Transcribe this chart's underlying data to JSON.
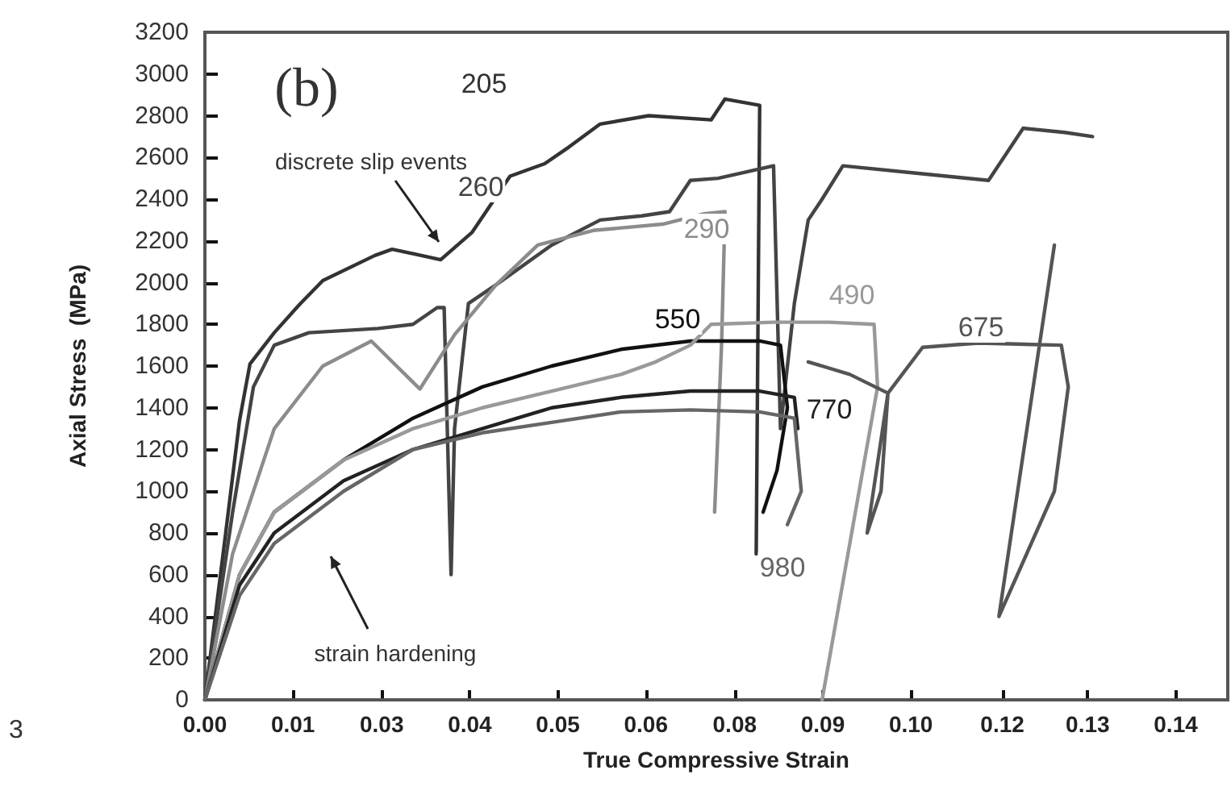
{
  "chart_data": {
    "type": "line",
    "xlabel": "True Compressive Strain",
    "ylabel": "Axial Stress  (MPa)",
    "xlim": [
      0,
      0.1475
    ],
    "ylim": [
      0,
      3200
    ],
    "xticks": [
      {
        "value": 0,
        "label": "0.00"
      },
      {
        "value": 0.0127,
        "label": "0.01"
      },
      {
        "value": 0.0255,
        "label": "0.03"
      },
      {
        "value": 0.0382,
        "label": "0.04"
      },
      {
        "value": 0.0509,
        "label": "0.05"
      },
      {
        "value": 0.0636,
        "label": "0.06"
      },
      {
        "value": 0.0764,
        "label": "0.08"
      },
      {
        "value": 0.0891,
        "label": "0.09"
      },
      {
        "value": 0.1018,
        "label": "0.10"
      },
      {
        "value": 0.115,
        "label": "0.12"
      },
      {
        "value": 0.1273,
        "label": "0.13"
      },
      {
        "value": 0.14,
        "label": "0.14"
      }
    ],
    "yticks": [
      0,
      200,
      400,
      600,
      800,
      1000,
      1200,
      1400,
      1600,
      1800,
      2000,
      2200,
      2400,
      2600,
      2800,
      3000,
      3200
    ],
    "grid": false,
    "marker": "none",
    "line_style": "solid",
    "series": [
      {
        "name": "205",
        "color": "#333333",
        "x": [
          0,
          0.003,
          0.005,
          0.0065,
          0.01,
          0.0135,
          0.017,
          0.0245,
          0.027,
          0.034,
          0.0385,
          0.044,
          0.049,
          0.0525,
          0.057,
          0.064,
          0.073,
          0.075,
          0.08,
          0.0795
        ],
        "values": [
          0,
          800,
          1340,
          1610,
          1760,
          1890,
          2010,
          2130,
          2160,
          2110,
          2240,
          2510,
          2570,
          2650,
          2760,
          2800,
          2780,
          2880,
          2850,
          700
        ]
      },
      {
        "name": "260",
        "color": "#444444",
        "x": [
          0,
          0.004,
          0.007,
          0.01,
          0.015,
          0.025,
          0.03,
          0.0335,
          0.0345,
          0.0355,
          0.036,
          0.038,
          0.042,
          0.05,
          0.057,
          0.063,
          0.067,
          0.07,
          0.074,
          0.082,
          0.083,
          0.085,
          0.087,
          0.089,
          0.092,
          0.104,
          0.113,
          0.118,
          0.124,
          0.128
        ],
        "values": [
          0,
          900,
          1500,
          1700,
          1760,
          1780,
          1800,
          1880,
          1880,
          600,
          1300,
          1900,
          1990,
          2180,
          2300,
          2320,
          2340,
          2490,
          2500,
          2560,
          1300,
          1900,
          2300,
          2400,
          2560,
          2520,
          2490,
          2740,
          2720,
          2700
        ]
      },
      {
        "name": "290",
        "color": "#8c8c8c",
        "x": [
          0,
          0.004,
          0.01,
          0.017,
          0.024,
          0.031,
          0.036,
          0.042,
          0.048,
          0.056,
          0.066,
          0.072,
          0.075,
          0.0745,
          0.0735
        ],
        "values": [
          0,
          700,
          1300,
          1600,
          1720,
          1490,
          1750,
          1990,
          2180,
          2250,
          2280,
          2330,
          2340,
          1700,
          900
        ]
      },
      {
        "name": "550",
        "color": "#111111",
        "x": [
          0,
          0.005,
          0.01,
          0.02,
          0.03,
          0.04,
          0.05,
          0.06,
          0.07,
          0.08,
          0.083,
          0.084,
          0.0825,
          0.0805
        ],
        "values": [
          0,
          600,
          900,
          1150,
          1350,
          1500,
          1600,
          1680,
          1720,
          1720,
          1700,
          1400,
          1100,
          900
        ]
      },
      {
        "name": "490",
        "color": "#999999",
        "x": [
          0,
          0.005,
          0.01,
          0.02,
          0.03,
          0.04,
          0.05,
          0.06,
          0.065,
          0.07,
          0.073,
          0.082,
          0.09,
          0.0965,
          0.097,
          0.089
        ],
        "values": [
          0,
          600,
          900,
          1150,
          1300,
          1400,
          1480,
          1560,
          1620,
          1700,
          1800,
          1810,
          1810,
          1800,
          1500,
          0
        ]
      },
      {
        "name": "675",
        "color": "#555555",
        "x": [
          0.087,
          0.093,
          0.0985,
          0.0975,
          0.0955,
          0.0985,
          0.1035,
          0.1115,
          0.1235,
          0.1245,
          0.1225,
          0.1145,
          0.1225
        ],
        "values": [
          1620,
          1560,
          1470,
          1000,
          800,
          1470,
          1690,
          1710,
          1700,
          1500,
          1000,
          400,
          2180
        ]
      },
      {
        "name": "770",
        "color": "#222222",
        "x": [
          0,
          0.005,
          0.01,
          0.02,
          0.03,
          0.04,
          0.05,
          0.06,
          0.07,
          0.08,
          0.085,
          0.0855
        ],
        "values": [
          0,
          550,
          800,
          1050,
          1200,
          1300,
          1400,
          1450,
          1480,
          1480,
          1450,
          1300
        ]
      },
      {
        "name": "980",
        "color": "#666666",
        "x": [
          0,
          0.005,
          0.01,
          0.02,
          0.03,
          0.04,
          0.05,
          0.06,
          0.07,
          0.08,
          0.085,
          0.086,
          0.084
        ],
        "values": [
          0,
          500,
          750,
          1000,
          1200,
          1280,
          1330,
          1380,
          1390,
          1380,
          1350,
          1000,
          840
        ]
      }
    ],
    "annotations": [
      "(b)",
      "3",
      "discrete slip events",
      "strain hardening"
    ]
  }
}
